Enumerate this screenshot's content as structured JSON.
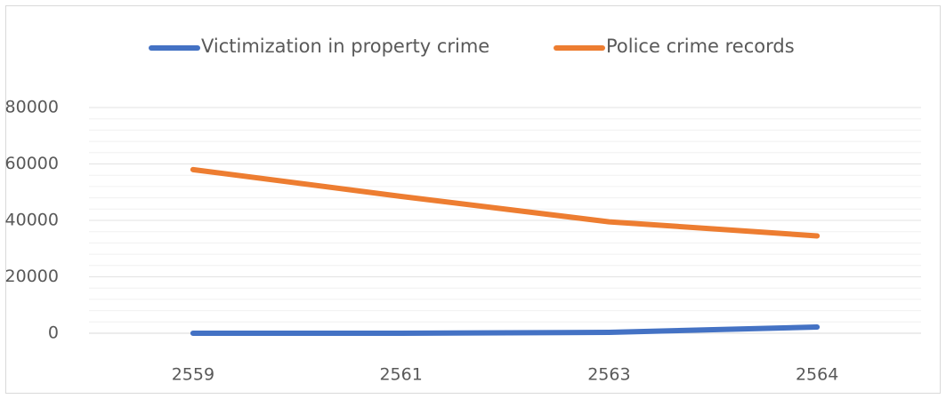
{
  "chart_data": {
    "type": "line",
    "categories": [
      "2559",
      "2561",
      "2563",
      "2564"
    ],
    "series": [
      {
        "name": "Victimization in property crime",
        "color": "#4472c4",
        "values": [
          0,
          0,
          300,
          2200
        ]
      },
      {
        "name": "Police crime records",
        "color": "#ed7d31",
        "values": [
          58000,
          48500,
          39500,
          34500
        ]
      }
    ],
    "ylim": [
      0,
      80000
    ],
    "yticks": [
      0,
      20000,
      40000,
      60000,
      80000
    ],
    "minor_yticks": [
      4000,
      8000,
      12000,
      16000,
      24000,
      28000,
      32000,
      36000,
      44000,
      48000,
      52000,
      56000,
      64000,
      68000,
      72000,
      76000
    ],
    "grid": true,
    "legend": "top"
  }
}
